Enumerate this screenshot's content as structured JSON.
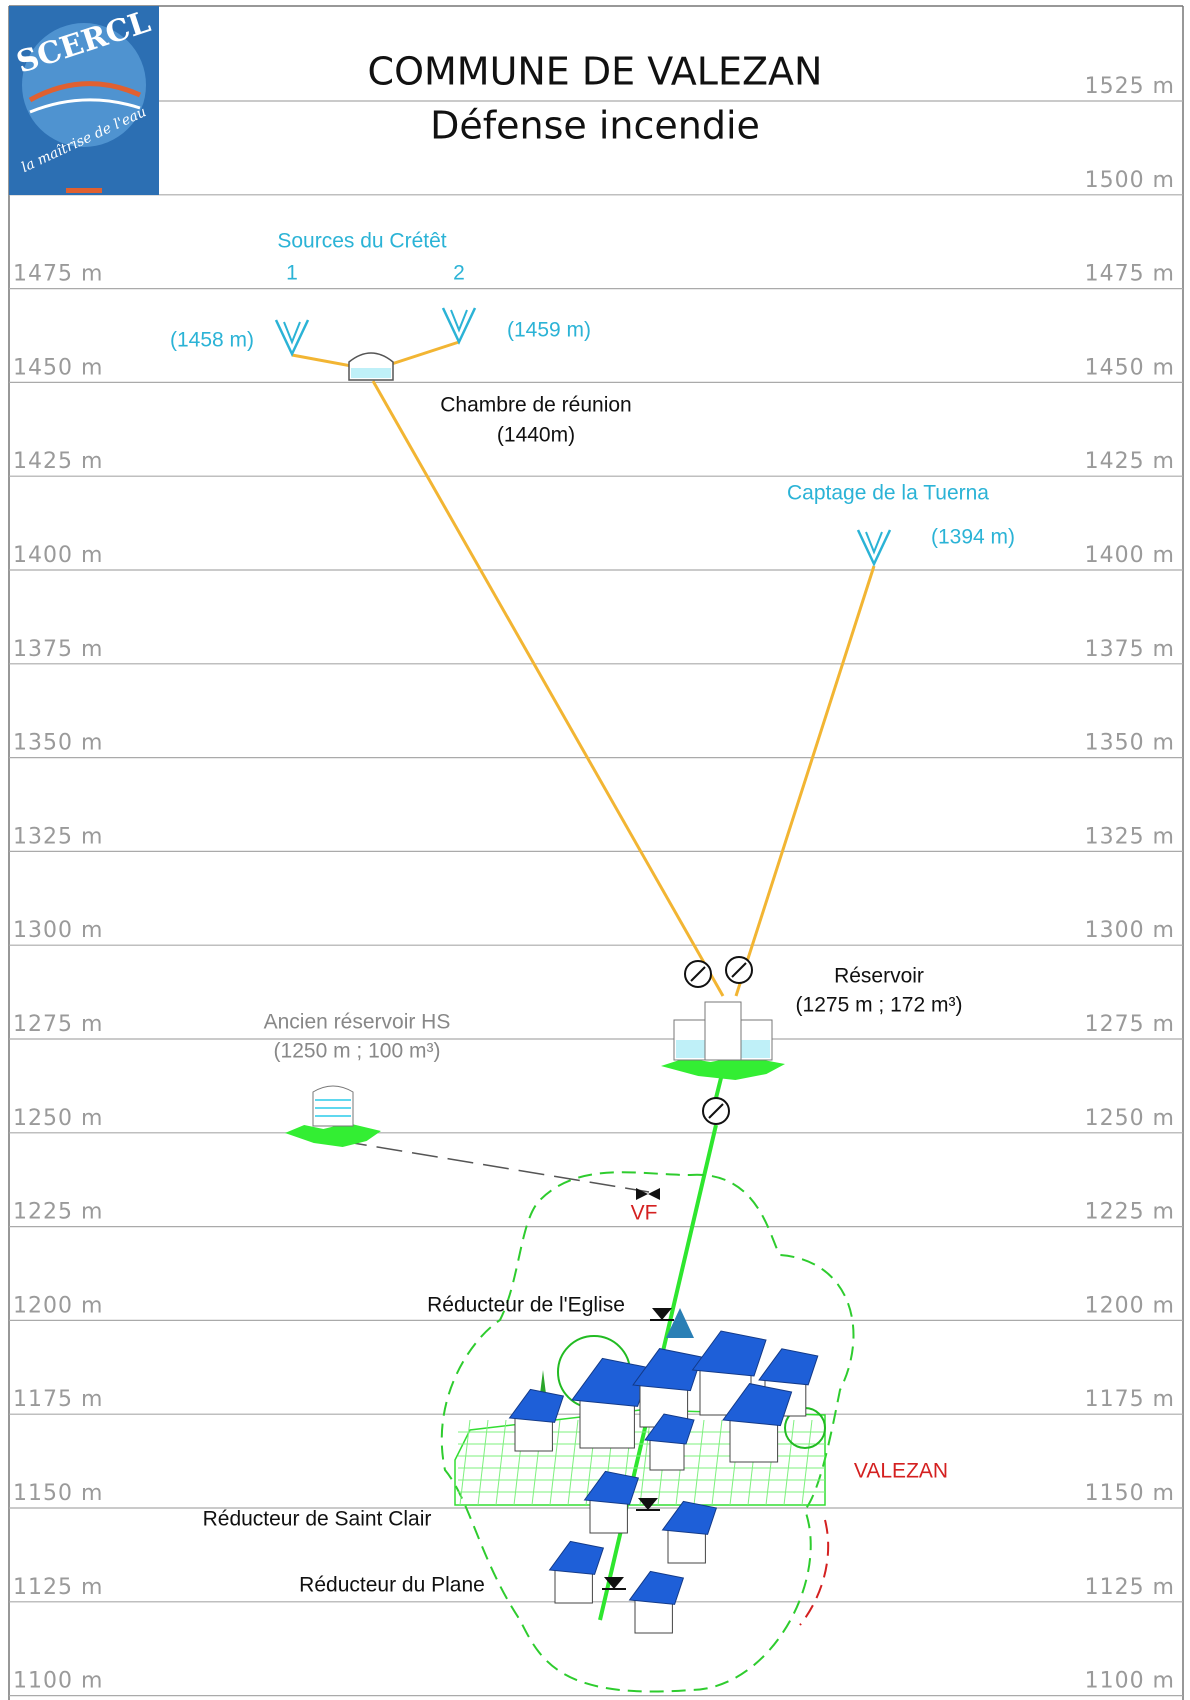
{
  "header": {
    "title": "COMMUNE DE VALEZAN",
    "subtitle": "Défense incendie"
  },
  "logo": {
    "name": "SCERCL",
    "tagline": "la maîtrise de l'eau"
  },
  "levels": [
    "1525 m",
    "1500 m",
    "1475 m",
    "1450 m",
    "1425 m",
    "1400 m",
    "1375 m",
    "1350 m",
    "1325 m",
    "1300 m",
    "1275 m",
    "1250 m",
    "1225 m",
    "1200 m",
    "1175 m",
    "1150 m",
    "1125 m",
    "1100 m"
  ],
  "sources": {
    "label": "Sources du Crétêt",
    "ids": [
      "1",
      "2"
    ],
    "elevations": [
      "(1458 m)",
      "(1459 m)"
    ]
  },
  "chamber": {
    "label": "Chambre de réunion",
    "elevation": "(1440m)"
  },
  "captage": {
    "label": "Captage de la Tuerna",
    "elevation": "(1394 m)"
  },
  "reservoir": {
    "label": "Réservoir",
    "detail": "(1275 m ; 172 m³)"
  },
  "old_reservoir": {
    "label": "Ancien réservoir HS",
    "detail": "(1250 m ; 100 m³)"
  },
  "valve": "VF",
  "village": "VALEZAN",
  "reducers": [
    "Réducteur de l'Eglise",
    "Réducteur de Saint Clair",
    "Réducteur du Plane"
  ]
}
